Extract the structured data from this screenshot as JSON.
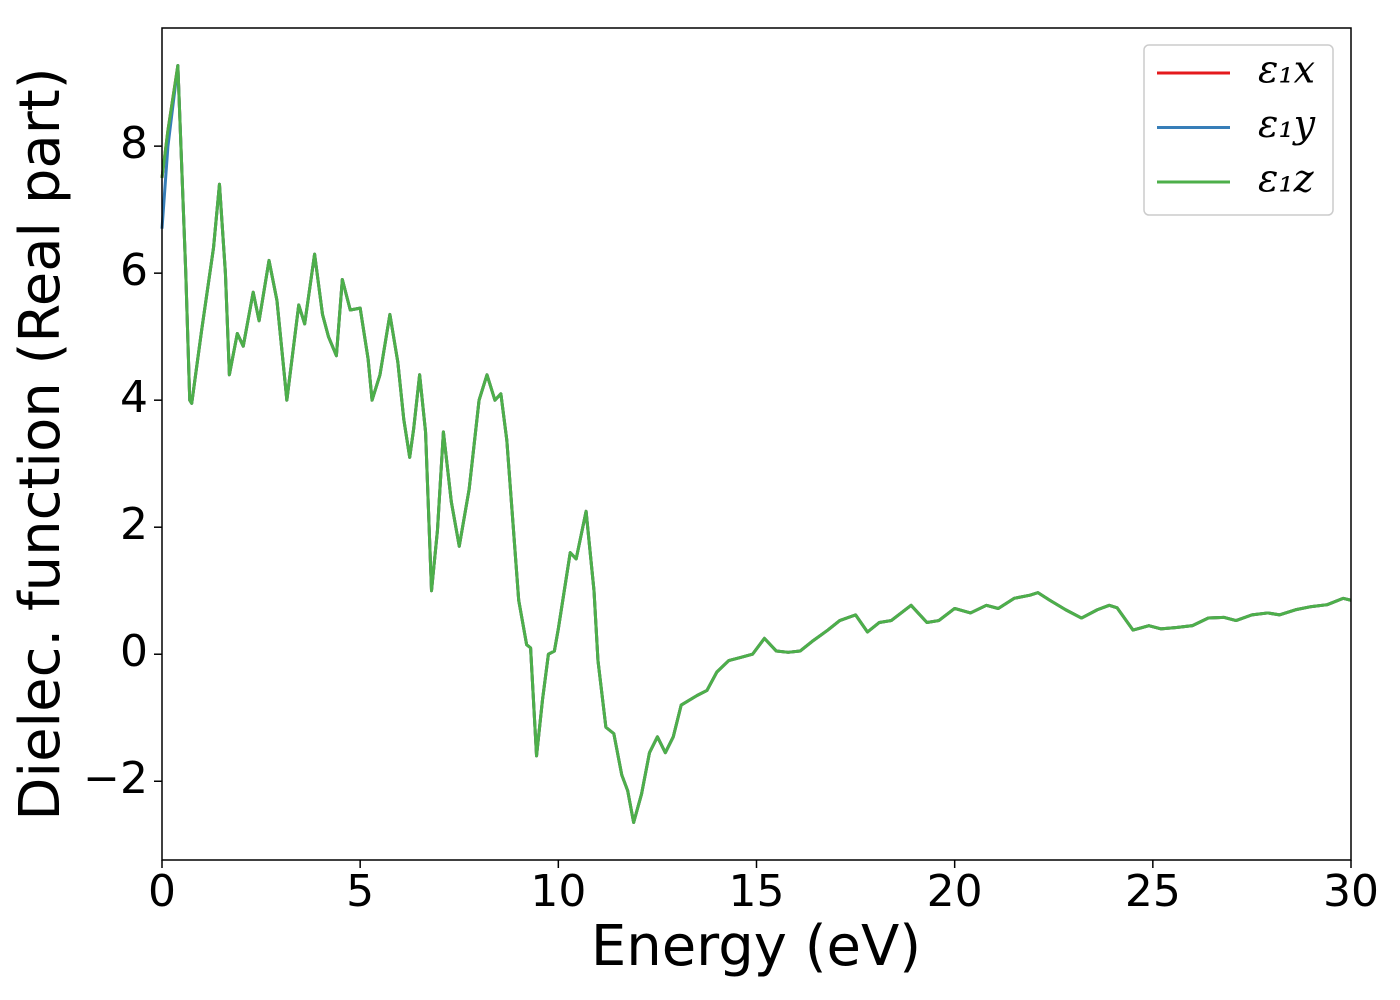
{
  "chart_data": {
    "type": "line",
    "xlabel": "Energy (eV)",
    "ylabel": "Dielec. function (Real part)",
    "xlim": [
      0,
      30
    ],
    "ylim": [
      -3.24,
      9.86
    ],
    "xticks": [
      0,
      5,
      10,
      15,
      20,
      25,
      30
    ],
    "yticks": [
      {
        "value": -2,
        "label": "−2"
      },
      0,
      2,
      4,
      6,
      8
    ],
    "legend": "upper right",
    "x": [
      0,
      0.15,
      0.4,
      0.6,
      0.7,
      0.75,
      1.0,
      1.3,
      1.45,
      1.6,
      1.7,
      1.9,
      2.05,
      2.3,
      2.45,
      2.7,
      2.9,
      3.15,
      3.45,
      3.6,
      3.85,
      4.05,
      4.2,
      4.4,
      4.55,
      4.75,
      5.0,
      5.2,
      5.3,
      5.5,
      5.75,
      5.95,
      6.1,
      6.25,
      6.35,
      6.5,
      6.65,
      6.8,
      6.95,
      7.1,
      7.3,
      7.5,
      7.75,
      8.0,
      8.2,
      8.4,
      8.55,
      8.7,
      9.0,
      9.2,
      9.3,
      9.45,
      9.6,
      9.75,
      9.9,
      10.0,
      10.3,
      10.45,
      10.7,
      10.9,
      11.0,
      11.2,
      11.4,
      11.6,
      11.75,
      11.9,
      12.1,
      12.3,
      12.5,
      12.7,
      12.9,
      13.1,
      13.5,
      13.75,
      14.0,
      14.3,
      14.6,
      14.9,
      15.2,
      15.5,
      15.8,
      16.1,
      16.4,
      16.8,
      17.1,
      17.5,
      17.8,
      18.1,
      18.4,
      18.9,
      19.3,
      19.6,
      20.0,
      20.4,
      20.8,
      21.1,
      21.5,
      21.9,
      22.1,
      22.4,
      22.8,
      23.2,
      23.6,
      23.9,
      24.1,
      24.5,
      24.9,
      25.2,
      25.6,
      26.0,
      26.4,
      26.8,
      27.1,
      27.5,
      27.9,
      28.2,
      28.6,
      29.0,
      29.4,
      29.8,
      30.0
    ],
    "series": [
      {
        "name": "ε₁x",
        "color": "#e41a1c",
        "values": [
          7.5,
          8.25,
          9.27,
          6.0,
          4.0,
          3.95,
          5.1,
          6.4,
          7.4,
          6.0,
          4.4,
          5.05,
          4.85,
          5.7,
          5.25,
          6.2,
          5.57,
          4.0,
          5.5,
          5.2,
          6.3,
          5.35,
          5.0,
          4.7,
          5.9,
          5.42,
          5.45,
          4.65,
          4.0,
          4.4,
          5.35,
          4.6,
          3.7,
          3.1,
          3.55,
          4.4,
          3.5,
          1.0,
          1.95,
          3.5,
          2.4,
          1.7,
          2.6,
          4.0,
          4.4,
          4.0,
          4.1,
          3.37,
          0.85,
          0.15,
          0.1,
          -1.6,
          -0.72,
          0,
          0.05,
          0.4,
          1.6,
          1.5,
          2.25,
          1.0,
          -0.1,
          -1.15,
          -1.25,
          -1.9,
          -2.15,
          -2.65,
          -2.2,
          -1.55,
          -1.3,
          -1.55,
          -1.3,
          -0.8,
          -0.65,
          -0.57,
          -0.28,
          -0.1,
          -0.05,
          0.0,
          0.25,
          0.05,
          0.03,
          0.05,
          0.2,
          0.38,
          0.53,
          0.62,
          0.35,
          0.5,
          0.53,
          0.77,
          0.5,
          0.53,
          0.72,
          0.65,
          0.77,
          0.72,
          0.88,
          0.93,
          0.97,
          0.85,
          0.7,
          0.57,
          0.7,
          0.77,
          0.73,
          0.38,
          0.45,
          0.4,
          0.42,
          0.45,
          0.57,
          0.58,
          0.53,
          0.62,
          0.65,
          0.62,
          0.7,
          0.75,
          0.78,
          0.88,
          0.85
        ]
      },
      {
        "name": "ε₁y",
        "color": "#377eb8",
        "values": [
          6.7,
          8.0,
          9.27,
          6.0,
          4.0,
          3.95,
          5.1,
          6.4,
          7.4,
          6.0,
          4.4,
          5.05,
          4.85,
          5.7,
          5.25,
          6.2,
          5.57,
          4.0,
          5.5,
          5.2,
          6.3,
          5.35,
          5.0,
          4.7,
          5.9,
          5.42,
          5.45,
          4.65,
          4.0,
          4.4,
          5.35,
          4.6,
          3.7,
          3.1,
          3.55,
          4.4,
          3.5,
          1.0,
          1.95,
          3.5,
          2.4,
          1.7,
          2.6,
          4.0,
          4.4,
          4.0,
          4.1,
          3.37,
          0.85,
          0.15,
          0.1,
          -1.6,
          -0.72,
          0,
          0.05,
          0.4,
          1.6,
          1.5,
          2.25,
          1.0,
          -0.1,
          -1.15,
          -1.25,
          -1.9,
          -2.15,
          -2.65,
          -2.2,
          -1.55,
          -1.3,
          -1.55,
          -1.3,
          -0.8,
          -0.65,
          -0.57,
          -0.28,
          -0.1,
          -0.05,
          0.0,
          0.25,
          0.05,
          0.03,
          0.05,
          0.2,
          0.38,
          0.53,
          0.62,
          0.35,
          0.5,
          0.53,
          0.77,
          0.5,
          0.53,
          0.72,
          0.65,
          0.77,
          0.72,
          0.88,
          0.93,
          0.97,
          0.85,
          0.7,
          0.57,
          0.7,
          0.77,
          0.73,
          0.38,
          0.45,
          0.4,
          0.42,
          0.45,
          0.57,
          0.58,
          0.53,
          0.62,
          0.65,
          0.62,
          0.7,
          0.75,
          0.78,
          0.88,
          0.85
        ]
      },
      {
        "name": "ε₁z",
        "color": "#4daf4a",
        "values": [
          7.5,
          8.25,
          9.27,
          6.0,
          4.0,
          3.95,
          5.1,
          6.4,
          7.4,
          6.0,
          4.4,
          5.05,
          4.85,
          5.7,
          5.25,
          6.2,
          5.57,
          4.0,
          5.5,
          5.2,
          6.3,
          5.35,
          5.0,
          4.7,
          5.9,
          5.42,
          5.45,
          4.65,
          4.0,
          4.4,
          5.35,
          4.6,
          3.7,
          3.1,
          3.55,
          4.4,
          3.5,
          1.0,
          1.95,
          3.5,
          2.4,
          1.7,
          2.6,
          4.0,
          4.4,
          4.0,
          4.1,
          3.37,
          0.85,
          0.15,
          0.1,
          -1.6,
          -0.72,
          0,
          0.05,
          0.4,
          1.6,
          1.5,
          2.25,
          1.0,
          -0.1,
          -1.15,
          -1.25,
          -1.9,
          -2.15,
          -2.65,
          -2.2,
          -1.55,
          -1.3,
          -1.55,
          -1.3,
          -0.8,
          -0.65,
          -0.57,
          -0.28,
          -0.1,
          -0.05,
          0.0,
          0.25,
          0.05,
          0.03,
          0.05,
          0.2,
          0.38,
          0.53,
          0.62,
          0.35,
          0.5,
          0.53,
          0.77,
          0.5,
          0.53,
          0.72,
          0.65,
          0.77,
          0.72,
          0.88,
          0.93,
          0.97,
          0.85,
          0.7,
          0.57,
          0.7,
          0.77,
          0.73,
          0.38,
          0.45,
          0.4,
          0.42,
          0.45,
          0.57,
          0.58,
          0.53,
          0.62,
          0.65,
          0.62,
          0.7,
          0.75,
          0.78,
          0.88,
          0.85
        ]
      }
    ]
  }
}
